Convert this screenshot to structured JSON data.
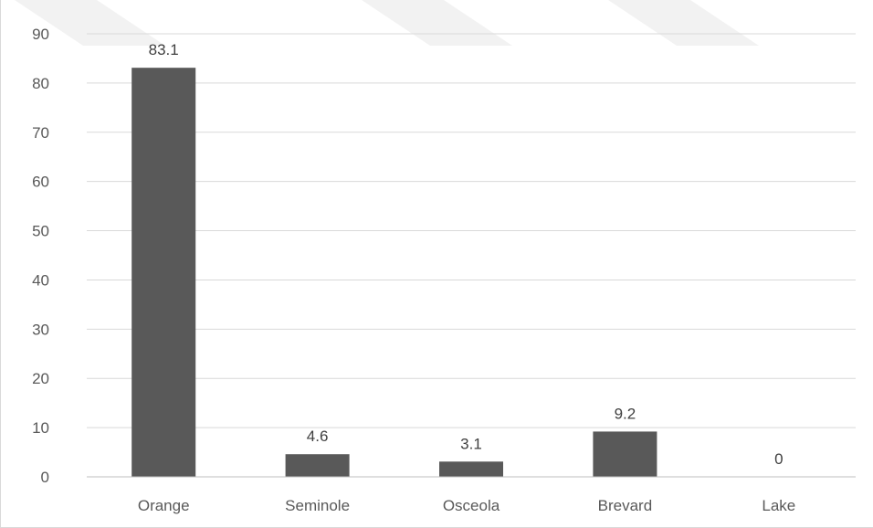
{
  "chart_data": {
    "type": "bar",
    "title": "",
    "xlabel": "",
    "ylabel": "",
    "categories": [
      "Orange",
      "Seminole",
      "Osceola",
      "Brevard",
      "Lake"
    ],
    "values": [
      83.1,
      4.6,
      3.1,
      9.2,
      0
    ],
    "data_labels": [
      "83.1",
      "4.6",
      "3.1",
      "9.2",
      "0"
    ],
    "ylim": [
      0,
      90
    ],
    "yticks": [
      0,
      10,
      20,
      30,
      40,
      50,
      60,
      70,
      80,
      90
    ],
    "ytick_labels": [
      "0",
      "10",
      "20",
      "30",
      "40",
      "50",
      "60",
      "70",
      "80",
      "90"
    ],
    "grid": true,
    "legend": "none",
    "colors": {
      "bar": "#595959",
      "grid": "#d9d9d9",
      "axis": "#bfbfbf",
      "text": "#595959",
      "background_stripes": "#f2f2f2"
    }
  }
}
